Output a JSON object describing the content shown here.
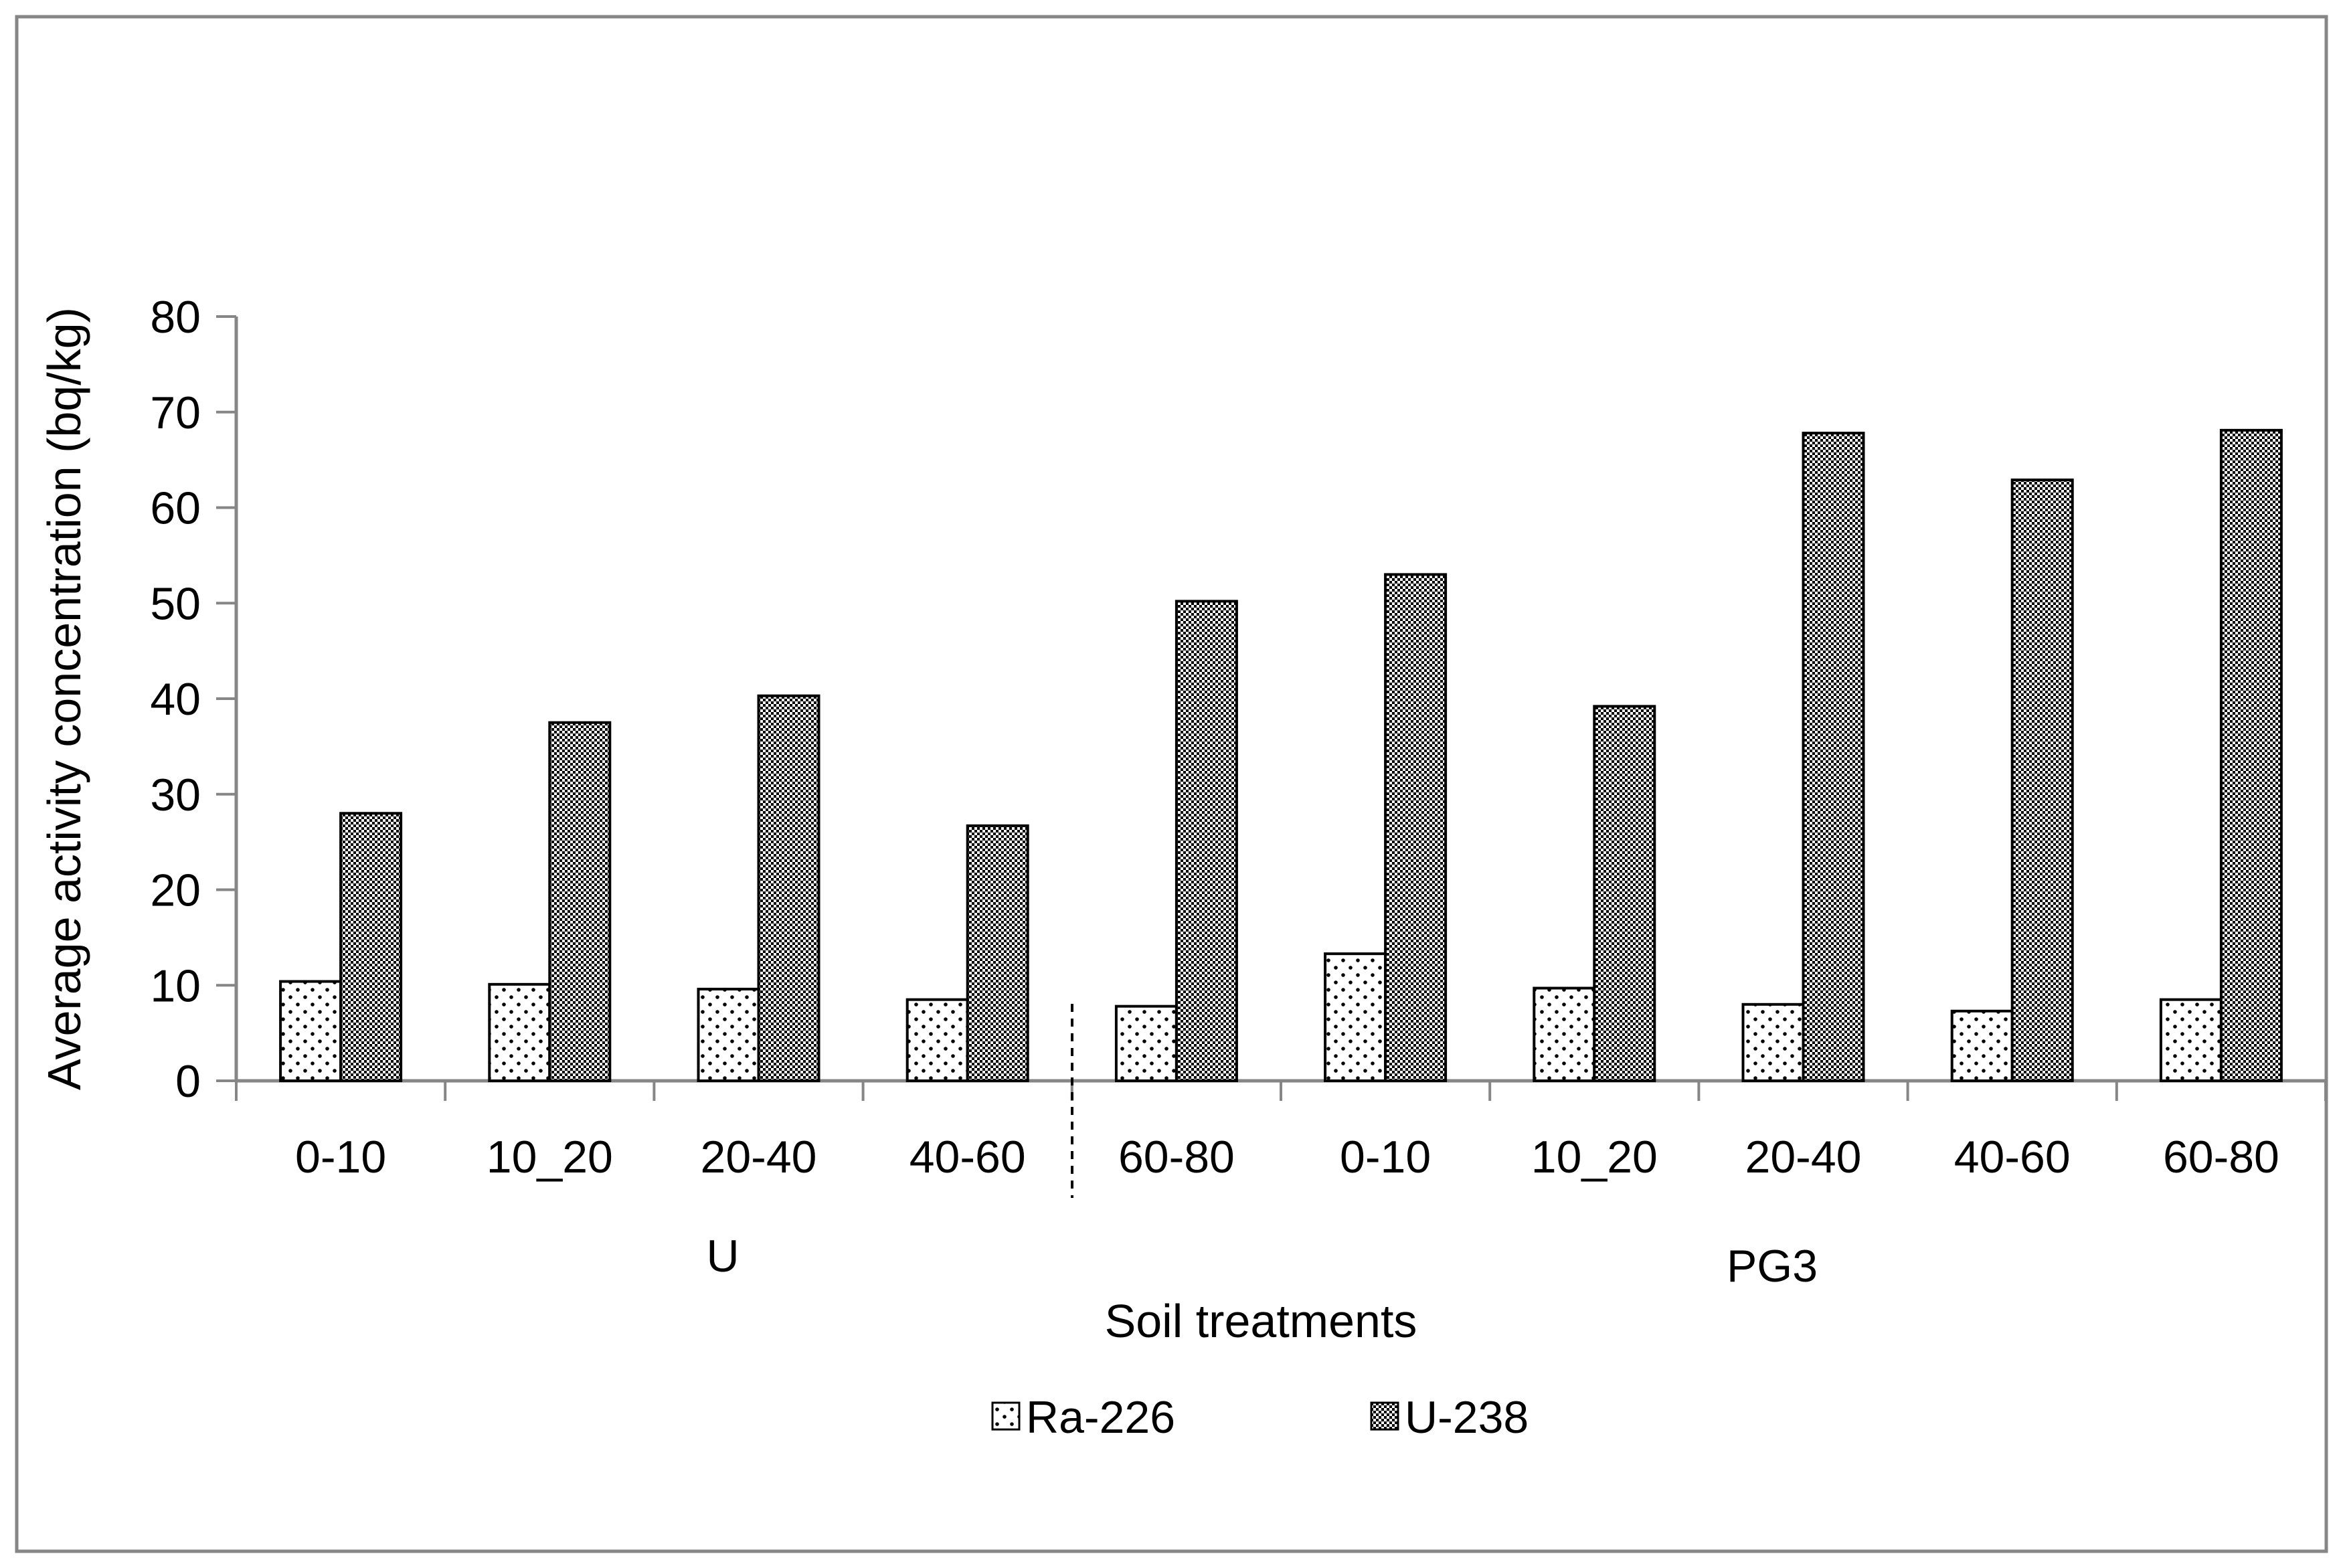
{
  "chart_data": {
    "type": "bar",
    "title": "",
    "xlabel": "Soil treatments",
    "ylabel": "Average activity concentration (bq/kg)",
    "ylim": [
      0,
      80
    ],
    "yticks": [
      0,
      10,
      20,
      30,
      40,
      50,
      60,
      70,
      80
    ],
    "grid": false,
    "legend_position": "bottom",
    "categories": [
      "0-10",
      "10_20",
      "20-40",
      "40-60",
      "60-80",
      "0-10",
      "10_20",
      "20-40",
      "40-60",
      "60-80"
    ],
    "groups": [
      {
        "label": "U",
        "categories": [
          "0-10",
          "10_20",
          "20-40",
          "40-60"
        ]
      },
      {
        "label": "PG3",
        "categories": [
          "60-80",
          "0-10",
          "10_20",
          "20-40",
          "40-60",
          "60-80"
        ]
      }
    ],
    "series": [
      {
        "name": "Ra-226",
        "pattern": "sparse-dots",
        "values": [
          10.4,
          10.1,
          9.6,
          8.5,
          7.8,
          13.3,
          9.7,
          8.0,
          7.3,
          8.5
        ]
      },
      {
        "name": "U-238",
        "pattern": "dense-hatch",
        "values": [
          28.0,
          37.5,
          40.3,
          26.7,
          50.2,
          53.0,
          39.2,
          67.8,
          62.9,
          68.1
        ]
      }
    ],
    "colors": {
      "axis": "#868686",
      "bar_stroke": "#000000",
      "frame": "#868686"
    }
  }
}
